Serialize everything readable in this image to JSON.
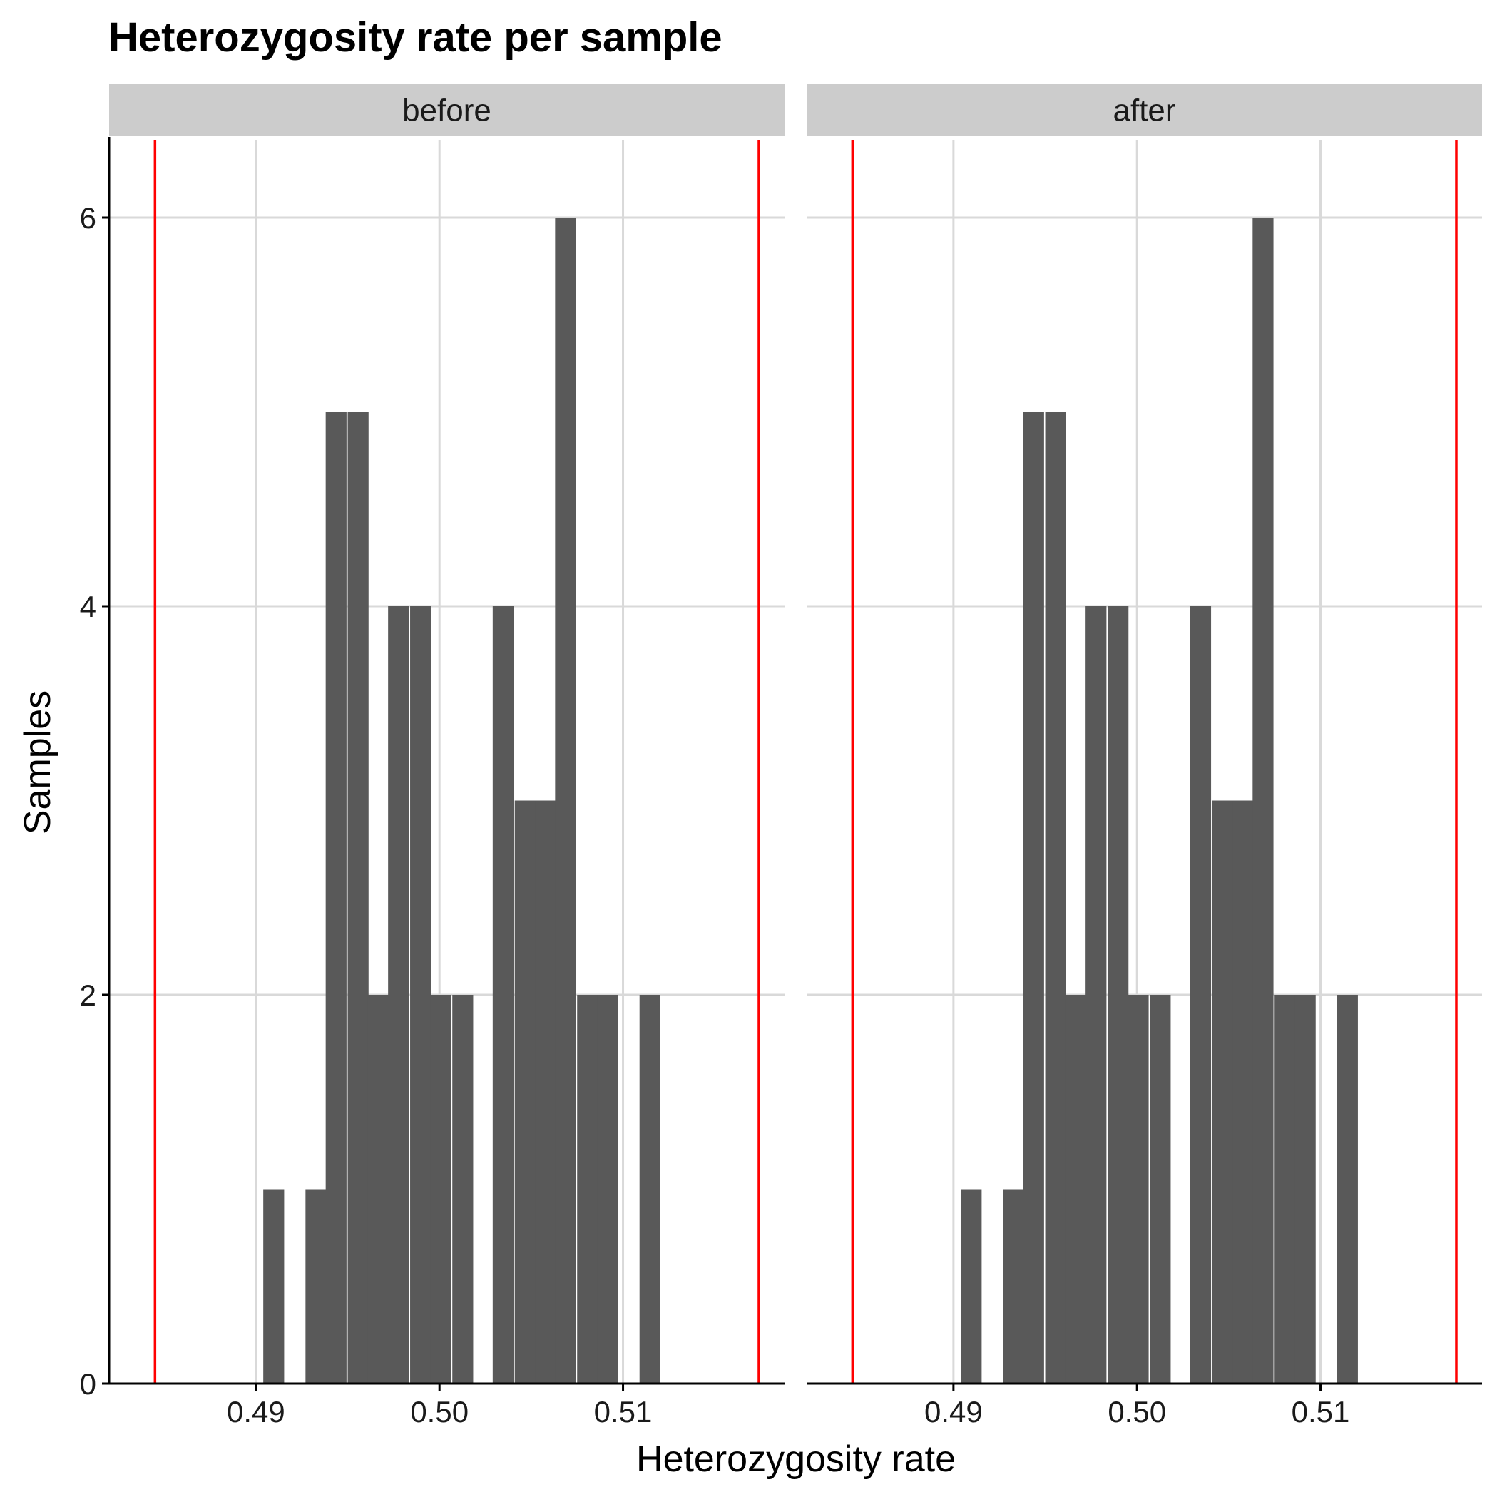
{
  "chart_data": {
    "type": "bar",
    "title": "Heterozygosity rate per sample",
    "xlabel": "Heterozygosity rate",
    "ylabel": "Samples",
    "xlim": [
      0.482,
      0.5188
    ],
    "ylim": [
      0,
      6.4
    ],
    "x_ticks": [
      0.49,
      0.5,
      0.51
    ],
    "x_tick_labels": [
      "0.49",
      "0.50",
      "0.51"
    ],
    "y_ticks": [
      0,
      2,
      4,
      6
    ],
    "y_tick_labels": [
      "0",
      "2",
      "4",
      "6"
    ],
    "grid": true,
    "bin_width": 0.001136,
    "bin_starts": [
      0.4904,
      0.4916,
      0.4927,
      0.4938,
      0.495,
      0.4961,
      0.4972,
      0.4984,
      0.4995,
      0.5007,
      0.5018,
      0.5029,
      0.5041,
      0.5052,
      0.5063,
      0.5075,
      0.5086,
      0.5097,
      0.5109
    ],
    "reference_lines": [
      0.4845,
      0.5174
    ],
    "panels": [
      {
        "name": "before",
        "counts": [
          1,
          0,
          1,
          5,
          5,
          2,
          4,
          4,
          2,
          2,
          0,
          4,
          3,
          3,
          6,
          2,
          2,
          0,
          2
        ]
      },
      {
        "name": "after",
        "counts": [
          1,
          0,
          1,
          5,
          5,
          2,
          4,
          4,
          2,
          2,
          0,
          4,
          3,
          3,
          6,
          2,
          2,
          0,
          2
        ]
      }
    ],
    "colors": {
      "bar": "#595959",
      "reference_line": "#ff0000",
      "grid": "#d9d9d9",
      "strip": "#cccccc"
    }
  }
}
